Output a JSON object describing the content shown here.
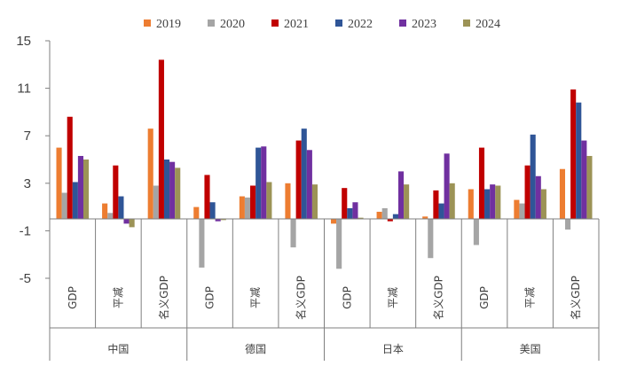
{
  "chart_data": {
    "type": "bar",
    "title": "",
    "xlabel": "",
    "ylabel": "",
    "ylim": [
      -5,
      15
    ],
    "yticks": [
      -5,
      -1,
      3,
      7,
      11,
      15
    ],
    "grid": false,
    "legend_position": "top",
    "groups": [
      {
        "label": "中国",
        "categories": [
          "GDP",
          "平减",
          "名义GDP"
        ]
      },
      {
        "label": "德国",
        "categories": [
          "GDP",
          "平减",
          "名义GDP"
        ]
      },
      {
        "label": "日本",
        "categories": [
          "GDP",
          "平减",
          "名义GDP"
        ]
      },
      {
        "label": "美国",
        "categories": [
          "GDP",
          "平减",
          "名义GDP"
        ]
      }
    ],
    "series": [
      {
        "name": "2019",
        "color": "#ED7D31",
        "values": [
          6.0,
          1.3,
          7.6,
          1.0,
          1.9,
          3.0,
          -0.4,
          0.6,
          0.2,
          2.5,
          1.6,
          4.2
        ]
      },
      {
        "name": "2020",
        "color": "#A5A5A5",
        "values": [
          2.2,
          0.5,
          2.8,
          -4.1,
          1.8,
          -2.4,
          -4.2,
          0.9,
          -3.3,
          -2.2,
          1.3,
          -0.9
        ]
      },
      {
        "name": "2021",
        "color": "#C00000",
        "values": [
          8.6,
          4.5,
          13.4,
          3.7,
          2.8,
          6.6,
          2.6,
          -0.2,
          2.4,
          6.0,
          4.5,
          10.9
        ]
      },
      {
        "name": "2022",
        "color": "#2F5597",
        "values": [
          3.1,
          1.9,
          5.0,
          1.4,
          6.0,
          7.6,
          0.9,
          0.4,
          1.3,
          2.5,
          7.1,
          9.8
        ]
      },
      {
        "name": "2023",
        "color": "#7030A0",
        "values": [
          5.3,
          -0.4,
          4.8,
          -0.2,
          6.1,
          5.8,
          1.4,
          4.0,
          5.5,
          2.9,
          3.6,
          6.6
        ]
      },
      {
        "name": "2024",
        "color": "#9C9356",
        "values": [
          5.0,
          -0.7,
          4.3,
          -0.1,
          3.1,
          2.9,
          0.1,
          2.9,
          3.0,
          2.8,
          2.5,
          5.3
        ]
      }
    ]
  }
}
